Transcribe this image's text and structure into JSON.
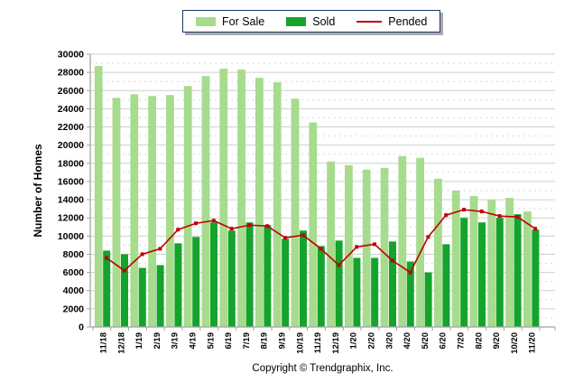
{
  "legend": {
    "position": "top",
    "items": [
      {
        "label": "For Sale",
        "swatch": "square",
        "color": "#a7db8d"
      },
      {
        "label": "Sold",
        "swatch": "square",
        "color": "#14a32b"
      },
      {
        "label": "Pended",
        "swatch": "line",
        "color": "#c00000"
      }
    ]
  },
  "footer": {
    "copyright": "Copyright © Trendgraphix, Inc."
  },
  "colors": {
    "for_sale": "#a7db8d",
    "sold": "#14a32b",
    "pended": "#c00000",
    "grid_major": "#cfcfcf",
    "grid_minor": "#dadada",
    "axis": "#a0a0a0",
    "text": "#000000"
  },
  "chart_data": {
    "type": "bar",
    "title": "",
    "xlabel": "",
    "ylabel": "Number of Homes",
    "ylim": [
      0,
      30000
    ],
    "y_tick_step": 2000,
    "grid": "horizontal: solid major every 2000, dashed minor every 1000",
    "legend_position": "top-center",
    "categories": [
      "11/18",
      "12/18",
      "1/19",
      "2/19",
      "3/19",
      "4/19",
      "5/19",
      "6/19",
      "7/19",
      "8/19",
      "9/19",
      "10/19",
      "11/19",
      "12/19",
      "1/20",
      "2/20",
      "3/20",
      "4/20",
      "5/20",
      "6/20",
      "7/20",
      "8/20",
      "9/20",
      "10/20",
      "11/20"
    ],
    "series": [
      {
        "name": "For Sale",
        "type": "bar",
        "color": "#a7db8d",
        "values": [
          28700,
          25200,
          25600,
          25400,
          25500,
          26500,
          27600,
          28400,
          28300,
          27400,
          26900,
          25100,
          22500,
          18200,
          17800,
          17300,
          17500,
          18800,
          18600,
          16300,
          15000,
          14400,
          14000,
          14200,
          12700
        ]
      },
      {
        "name": "Sold",
        "type": "bar",
        "color": "#14a32b",
        "values": [
          8400,
          8000,
          6500,
          6800,
          9200,
          9900,
          11500,
          10600,
          11500,
          11200,
          9700,
          10600,
          8900,
          9500,
          7600,
          7600,
          9400,
          7200,
          6000,
          9100,
          12000,
          11500,
          12000,
          12400,
          10700
        ]
      },
      {
        "name": "Pended",
        "type": "line",
        "color": "#c00000",
        "marker": "square",
        "values": [
          7600,
          6200,
          8000,
          8600,
          10700,
          11400,
          11700,
          10800,
          11200,
          11100,
          9800,
          10100,
          8600,
          6800,
          8800,
          9100,
          7300,
          6000,
          9900,
          12300,
          12900,
          12700,
          12200,
          12100,
          10800
        ]
      }
    ]
  }
}
